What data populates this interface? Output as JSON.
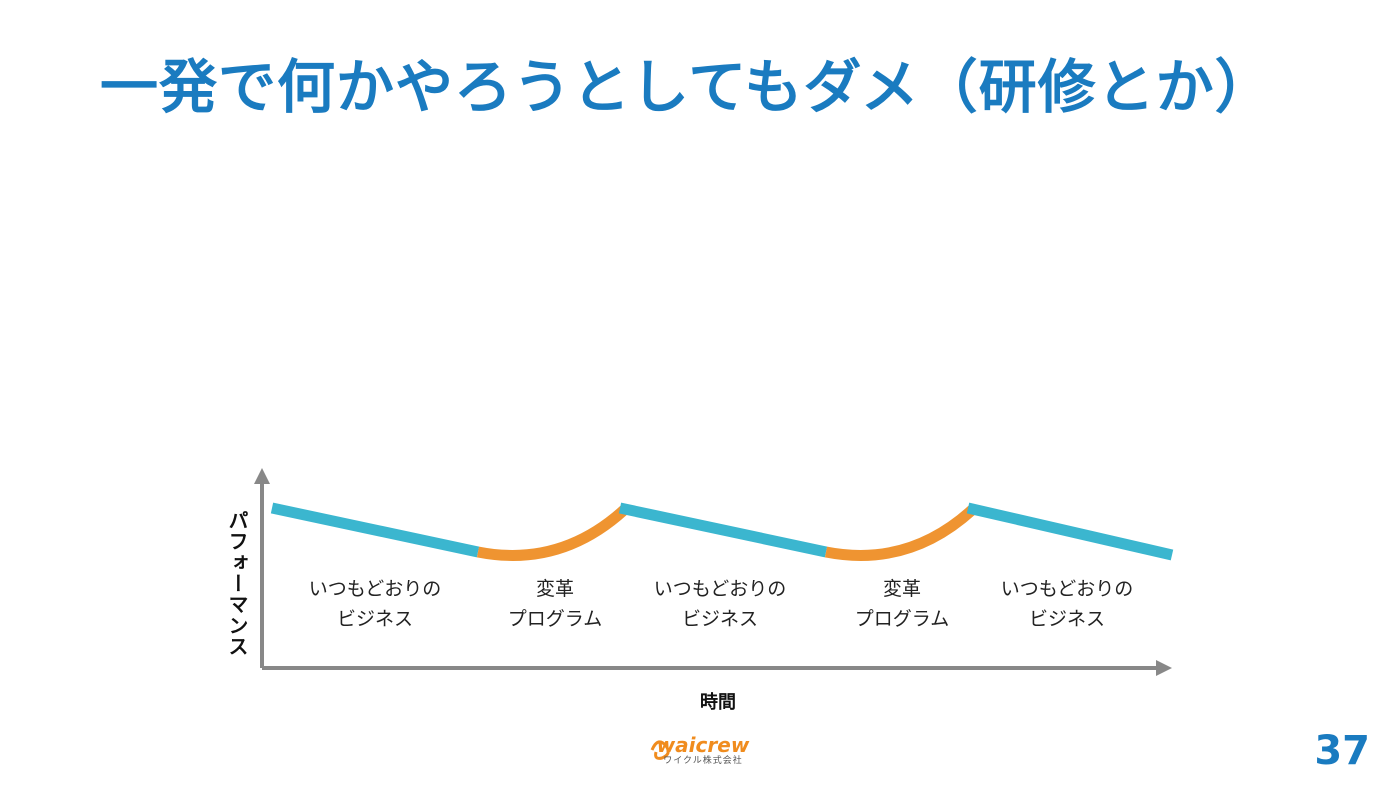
{
  "title": "一発で何かやろうとしてもダメ（研修とか）",
  "colors": {
    "title": "#1a7bc0",
    "business_line": "#3bb6cf",
    "program_line": "#ef9431",
    "axis": "#888888",
    "logo": "#f08c1e"
  },
  "diagram": {
    "y_axis_label": "パフォーマンス",
    "x_axis_label": "時間",
    "phases": [
      {
        "type": "business",
        "line1": "いつもどおりの",
        "line2": "ビジネス"
      },
      {
        "type": "program",
        "line1": "変革",
        "line2": "プログラム"
      },
      {
        "type": "business",
        "line1": "いつもどおりの",
        "line2": "ビジネス"
      },
      {
        "type": "program",
        "line1": "変革",
        "line2": "プログラム"
      },
      {
        "type": "business",
        "line1": "いつもどおりの",
        "line2": "ビジネス"
      }
    ]
  },
  "logo": {
    "wordmark": "waicrew",
    "subtext": "ワイクル株式会社"
  },
  "page_number": "37"
}
